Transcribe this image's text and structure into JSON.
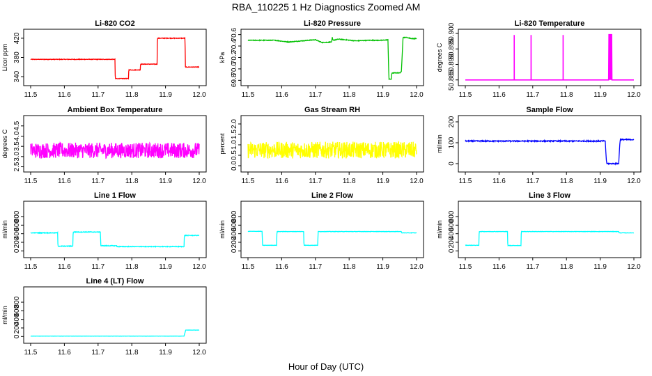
{
  "figure": {
    "title": "RBA_110225  1 Hz Diagnostics Zoomed AM",
    "xlabel": "Hour of Day (UTC)"
  },
  "chart_data": [
    {
      "type": "line",
      "title": "Li-820 CO2",
      "ylabel": "Licor ppm",
      "color": "#ff0000",
      "xlim": [
        11.5,
        12.0
      ],
      "ylim": [
        330,
        430
      ],
      "yticks": [
        340,
        380,
        420
      ],
      "xticks": [
        11.5,
        11.6,
        11.7,
        11.8,
        11.9,
        12.0
      ],
      "noise": 0.6,
      "series": [
        {
          "x": [
            11.5,
            11.75,
            11.751,
            11.79,
            11.791,
            11.825,
            11.826,
            11.875,
            11.876,
            11.958,
            11.959,
            12.0
          ],
          "y": [
            376,
            376,
            336,
            336,
            354,
            354,
            366,
            366,
            420,
            420,
            360,
            360
          ]
        }
      ]
    },
    {
      "type": "line",
      "title": "Li-820 Pressure",
      "ylabel": "kPa",
      "color": "#00c000",
      "xlim": [
        11.5,
        12.0
      ],
      "ylim": [
        69.78,
        70.62
      ],
      "yticks": [
        69.8,
        70.0,
        70.2,
        70.4,
        70.6
      ],
      "xticks": [
        11.5,
        11.6,
        11.7,
        11.8,
        11.9,
        12.0
      ],
      "noise": 0.006,
      "series": [
        {
          "x": [
            11.5,
            11.58,
            11.62,
            11.7,
            11.72,
            11.748,
            11.75,
            11.752,
            11.77,
            11.82,
            11.86,
            11.9,
            11.915,
            11.918,
            11.925,
            11.927,
            11.95,
            11.955,
            11.96,
            11.97,
            11.985,
            12.0
          ],
          "y": [
            70.5,
            70.5,
            70.47,
            70.51,
            70.46,
            70.47,
            70.55,
            70.5,
            70.52,
            70.49,
            70.5,
            70.5,
            70.51,
            69.82,
            69.82,
            69.93,
            69.93,
            69.95,
            70.55,
            70.55,
            70.53,
            70.53
          ]
        }
      ]
    },
    {
      "type": "line",
      "title": "Li-820 Temperature",
      "ylabel": "degrees C",
      "color": "#ff00ff",
      "xlim": [
        11.5,
        12.0
      ],
      "ylim": [
        50.8845,
        50.9
      ],
      "yticks": [
        50.885,
        50.89,
        50.895,
        50.9
      ],
      "xticks": [
        11.5,
        11.6,
        11.7,
        11.8,
        11.9,
        12.0
      ],
      "noise": 0,
      "series": [
        {
          "x": [
            11.5,
            11.645,
            11.6451,
            11.6452,
            11.6453,
            11.695,
            11.6951,
            11.6952,
            11.6953,
            11.79,
            11.7901,
            11.7902,
            11.7903,
            11.925,
            11.926,
            11.927,
            11.928,
            11.929,
            11.93,
            11.931,
            11.932,
            11.933,
            11.934,
            11.935,
            11.936,
            12.0
          ],
          "y": [
            50.885,
            50.885,
            50.8995,
            50.885,
            50.885,
            50.885,
            50.8995,
            50.885,
            50.885,
            50.885,
            50.8995,
            50.885,
            50.885,
            50.885,
            50.8998,
            50.885,
            50.8998,
            50.885,
            50.8998,
            50.885,
            50.8998,
            50.885,
            50.8998,
            50.885,
            50.885,
            50.885
          ]
        }
      ]
    },
    {
      "type": "line",
      "title": "Ambient Box Temperature",
      "ylabel": "degrees C",
      "color": "#ff00ff",
      "xlim": [
        11.5,
        12.0
      ],
      "ylim": [
        2.45,
        4.8
      ],
      "yticks": [
        2.5,
        3.0,
        3.5,
        4.0,
        4.5
      ],
      "xticks": [
        11.5,
        11.6,
        11.7,
        11.8,
        11.9,
        12.0
      ],
      "noise": 0.38,
      "series": [
        {
          "x": [
            11.5,
            12.0
          ],
          "y": [
            3.3,
            3.3
          ]
        }
      ]
    },
    {
      "type": "line",
      "title": "Gas Stream RH",
      "ylabel": "percent",
      "color": "#ffff00",
      "xlim": [
        11.5,
        12.0
      ],
      "ylim": [
        -0.1,
        2.2
      ],
      "yticks": [
        0.0,
        0.5,
        1.0,
        1.5,
        2.0
      ],
      "xticks": [
        11.5,
        11.6,
        11.7,
        11.8,
        11.9,
        12.0
      ],
      "noise": 0.4,
      "series": [
        {
          "x": [
            11.5,
            12.0
          ],
          "y": [
            0.75,
            0.75
          ]
        }
      ]
    },
    {
      "type": "line",
      "title": "Sample Flow",
      "ylabel": "ml/min",
      "color": "#0000ff",
      "xlim": [
        11.5,
        12.0
      ],
      "ylim": [
        -20,
        210
      ],
      "yticks": [
        0,
        100,
        200
      ],
      "xticks": [
        11.5,
        11.6,
        11.7,
        11.8,
        11.9,
        12.0
      ],
      "noise": 2.5,
      "series": [
        {
          "x": [
            11.5,
            11.915,
            11.918,
            11.92,
            11.955,
            11.958,
            11.96,
            12.0
          ],
          "y": [
            108,
            108,
            20,
            0,
            0,
            90,
            115,
            115
          ]
        }
      ]
    },
    {
      "type": "line",
      "title": "Line 1 Flow",
      "ylabel": "ml/min",
      "color": "#00ffff",
      "xlim": [
        11.5,
        12.0
      ],
      "ylim": [
        -60,
        1060
      ],
      "yticks": [
        0,
        200,
        400,
        600,
        800
      ],
      "xticks": [
        11.5,
        11.6,
        11.7,
        11.8,
        11.9,
        12.0
      ],
      "noise": 8,
      "series": [
        {
          "x": [
            11.5,
            11.58,
            11.581,
            11.625,
            11.626,
            11.707,
            11.708,
            11.755,
            11.756,
            11.955,
            11.956,
            12.0
          ],
          "y": [
            420,
            420,
            110,
            110,
            440,
            440,
            120,
            120,
            100,
            100,
            360,
            360
          ]
        }
      ]
    },
    {
      "type": "line",
      "title": "Line 2 Flow",
      "ylabel": "ml/min",
      "color": "#00ffff",
      "xlim": [
        11.5,
        12.0
      ],
      "ylim": [
        -60,
        1060
      ],
      "yticks": [
        0,
        200,
        400,
        600,
        800
      ],
      "xticks": [
        11.5,
        11.6,
        11.7,
        11.8,
        11.9,
        12.0
      ],
      "noise": 4,
      "series": [
        {
          "x": [
            11.5,
            11.542,
            11.543,
            11.585,
            11.586,
            11.665,
            11.666,
            11.707,
            11.708,
            11.955,
            11.956,
            12.0
          ],
          "y": [
            455,
            455,
            130,
            130,
            450,
            450,
            130,
            130,
            450,
            450,
            420,
            420
          ]
        }
      ]
    },
    {
      "type": "line",
      "title": "Line 3 Flow",
      "ylabel": "ml/min",
      "color": "#00ffff",
      "xlim": [
        11.5,
        12.0
      ],
      "ylim": [
        -60,
        1060
      ],
      "yticks": [
        0,
        200,
        400,
        600,
        800
      ],
      "xticks": [
        11.5,
        11.6,
        11.7,
        11.8,
        11.9,
        12.0
      ],
      "noise": 4,
      "series": [
        {
          "x": [
            11.5,
            11.54,
            11.541,
            11.625,
            11.626,
            11.665,
            11.666,
            11.955,
            11.956,
            12.0
          ],
          "y": [
            130,
            130,
            450,
            450,
            125,
            125,
            450,
            450,
            420,
            420
          ]
        }
      ]
    },
    {
      "type": "line",
      "title": "Line 4 (LT) Flow",
      "ylabel": "ml/min",
      "color": "#00ffff",
      "xlim": [
        11.5,
        12.0
      ],
      "ylim": [
        -60,
        1060
      ],
      "yticks": [
        0,
        200,
        400,
        600,
        800
      ],
      "xticks": [
        11.5,
        11.6,
        11.7,
        11.8,
        11.9,
        12.0
      ],
      "noise": 2,
      "series": [
        {
          "x": [
            11.5,
            11.955,
            11.96,
            12.0
          ],
          "y": [
            10,
            10,
            150,
            150
          ]
        }
      ]
    }
  ]
}
